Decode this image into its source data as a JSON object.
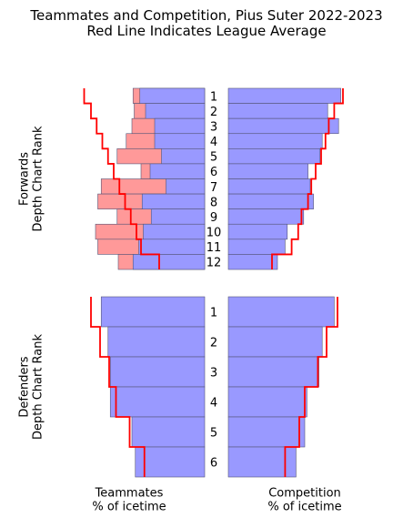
{
  "chart_data": {
    "type": "bar",
    "title": "Teammates and Competition, Pius Suter 2022-2023",
    "subtitle": "Red Line Indicates League Average",
    "xlabel_left": "Teammates\n% of icetime",
    "xlabel_right": "Competition\n% of icetime",
    "colors": {
      "bar": "#9999ff",
      "highlight": "#ff9999",
      "league_line": "#ff0000",
      "edge": "#555577"
    },
    "xlim": [
      0,
      1
    ],
    "panels": [
      {
        "name": "forwards",
        "ylabel": "Forwards\nDepth Chart Rank",
        "ranks": [
          "1",
          "2",
          "3",
          "4",
          "5",
          "6",
          "7",
          "8",
          "9",
          "10",
          "11",
          "12"
        ],
        "teammates": [
          0.57,
          0.52,
          0.44,
          0.44,
          0.38,
          0.48,
          0.34,
          0.55,
          0.47,
          0.54,
          0.58,
          0.63
        ],
        "teammates_highlight": [
          0.63,
          0.62,
          0.64,
          0.69,
          0.77,
          0.56,
          0.91,
          0.94,
          0.77,
          0.96,
          0.94,
          0.76
        ],
        "league_teammates": [
          1.06,
          1.0,
          0.95,
          0.9,
          0.85,
          0.8,
          0.75,
          0.7,
          0.65,
          0.6,
          0.56,
          0.4
        ],
        "competition": [
          1.03,
          0.91,
          1.01,
          0.86,
          0.84,
          0.73,
          0.75,
          0.78,
          0.69,
          0.54,
          0.52,
          0.45
        ],
        "league_competition": [
          1.05,
          0.97,
          0.92,
          0.89,
          0.85,
          0.8,
          0.76,
          0.73,
          0.67,
          0.64,
          0.58,
          0.4
        ]
      },
      {
        "name": "defenders",
        "ylabel": "Defenders\nDepth Chart Rank",
        "ranks": [
          "1",
          "2",
          "3",
          "4",
          "5",
          "6"
        ],
        "teammates": [
          0.91,
          0.85,
          0.83,
          0.83,
          0.64,
          0.61
        ],
        "league_teammates": [
          1.0,
          0.92,
          0.84,
          0.78,
          0.66,
          0.53
        ],
        "competition": [
          0.97,
          0.86,
          0.83,
          0.72,
          0.7,
          0.62
        ],
        "league_competition": [
          1.0,
          0.9,
          0.82,
          0.7,
          0.65,
          0.52
        ]
      }
    ]
  }
}
